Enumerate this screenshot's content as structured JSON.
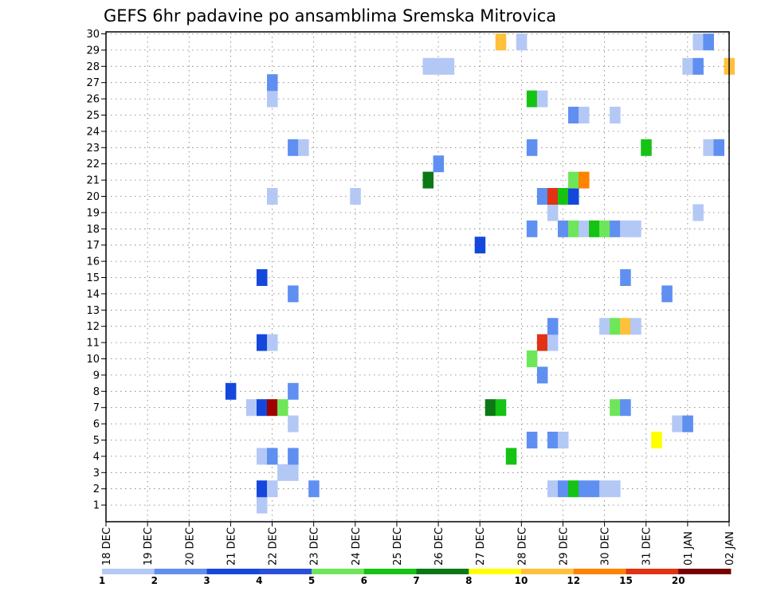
{
  "chart_data": {
    "type": "heatmap",
    "title": "GEFS 6hr padavine po ansamblima Sremska Mitrovica",
    "xlabel": "",
    "ylabel": "",
    "x_ticks": [
      "18 DEC",
      "19 DEC",
      "20 DEC",
      "21 DEC",
      "22 DEC",
      "23 DEC",
      "24 DEC",
      "25 DEC",
      "26 DEC",
      "27 DEC",
      "28 DEC",
      "29 DEC",
      "30 DEC",
      "31 DEC",
      "01 JAN",
      "02 JAN"
    ],
    "y_ticks": [
      "1",
      "2",
      "3",
      "4",
      "5",
      "6",
      "7",
      "8",
      "9",
      "10",
      "11",
      "12",
      "13",
      "14",
      "15",
      "16",
      "17",
      "18",
      "19",
      "20",
      "21",
      "22",
      "23",
      "24",
      "25",
      "26",
      "27",
      "28",
      "29",
      "30"
    ],
    "x_unit": "6-hour step from 18 DEC",
    "xlim": [
      0,
      60
    ],
    "ylim": [
      0,
      30.5
    ],
    "grid": true,
    "legend": {
      "placement": "bottom",
      "levels": [
        "1",
        "2",
        "3",
        "4",
        "5",
        "6",
        "7",
        "8",
        "10",
        "12",
        "15",
        "20"
      ],
      "colors": [
        "#b4c8f5",
        "#5f8ff0",
        "#1448dc",
        "#2a4fdb",
        "#6ee65a",
        "#14c314",
        "#0a7814",
        "#ffff00",
        "#ffc03c",
        "#ff8200",
        "#e13214",
        "#780000"
      ]
    },
    "cells": [
      {
        "x": 15,
        "y": 1,
        "color": "#b4c8f5"
      },
      {
        "x": 15,
        "y": 2,
        "color": "#1448dc"
      },
      {
        "x": 16,
        "y": 2,
        "color": "#b4c8f5"
      },
      {
        "x": 20,
        "y": 2,
        "color": "#5f8ff0"
      },
      {
        "x": 43,
        "y": 2,
        "color": "#b4c8f5"
      },
      {
        "x": 44,
        "y": 2,
        "color": "#5f8ff0"
      },
      {
        "x": 45,
        "y": 2,
        "color": "#14c314"
      },
      {
        "x": 46,
        "y": 2,
        "color": "#5f8ff0"
      },
      {
        "x": 47,
        "y": 2,
        "color": "#5f8ff0"
      },
      {
        "x": 48,
        "y": 2,
        "color": "#b4c8f5"
      },
      {
        "x": 49,
        "y": 2,
        "color": "#b4c8f5"
      },
      {
        "x": 17,
        "y": 3,
        "color": "#b4c8f5"
      },
      {
        "x": 18,
        "y": 3,
        "color": "#b4c8f5"
      },
      {
        "x": 15,
        "y": 4,
        "color": "#b4c8f5"
      },
      {
        "x": 16,
        "y": 4,
        "color": "#5f8ff0"
      },
      {
        "x": 18,
        "y": 4,
        "color": "#5f8ff0"
      },
      {
        "x": 39,
        "y": 4,
        "color": "#14c314"
      },
      {
        "x": 41,
        "y": 5,
        "color": "#5f8ff0"
      },
      {
        "x": 43,
        "y": 5,
        "color": "#5f8ff0"
      },
      {
        "x": 44,
        "y": 5,
        "color": "#b4c8f5"
      },
      {
        "x": 53,
        "y": 5,
        "color": "#ffff00"
      },
      {
        "x": 18,
        "y": 6,
        "color": "#b4c8f5"
      },
      {
        "x": 55,
        "y": 6,
        "color": "#b4c8f5"
      },
      {
        "x": 56,
        "y": 6,
        "color": "#5f8ff0"
      },
      {
        "x": 14,
        "y": 7,
        "color": "#b4c8f5"
      },
      {
        "x": 15,
        "y": 7,
        "color": "#1448dc"
      },
      {
        "x": 16,
        "y": 7,
        "color": "#a00000"
      },
      {
        "x": 17,
        "y": 7,
        "color": "#6ee65a"
      },
      {
        "x": 37,
        "y": 7,
        "color": "#0a7814"
      },
      {
        "x": 38,
        "y": 7,
        "color": "#14c314"
      },
      {
        "x": 49,
        "y": 7,
        "color": "#6ee65a"
      },
      {
        "x": 50,
        "y": 7,
        "color": "#5f8ff0"
      },
      {
        "x": 12,
        "y": 8,
        "color": "#1448dc"
      },
      {
        "x": 18,
        "y": 8,
        "color": "#5f8ff0"
      },
      {
        "x": 42,
        "y": 9,
        "color": "#5f8ff0"
      },
      {
        "x": 41,
        "y": 10,
        "color": "#6ee65a"
      },
      {
        "x": 15,
        "y": 11,
        "color": "#1448dc"
      },
      {
        "x": 16,
        "y": 11,
        "color": "#b4c8f5"
      },
      {
        "x": 42,
        "y": 11,
        "color": "#e13214"
      },
      {
        "x": 43,
        "y": 11,
        "color": "#b4c8f5"
      },
      {
        "x": 43,
        "y": 12,
        "color": "#5f8ff0"
      },
      {
        "x": 48,
        "y": 12,
        "color": "#b4c8f5"
      },
      {
        "x": 49,
        "y": 12,
        "color": "#6ee65a"
      },
      {
        "x": 50,
        "y": 12,
        "color": "#ffc03c"
      },
      {
        "x": 51,
        "y": 12,
        "color": "#b4c8f5"
      },
      {
        "x": 18,
        "y": 14,
        "color": "#5f8ff0"
      },
      {
        "x": 54,
        "y": 14,
        "color": "#5f8ff0"
      },
      {
        "x": 15,
        "y": 15,
        "color": "#1448dc"
      },
      {
        "x": 50,
        "y": 15,
        "color": "#5f8ff0"
      },
      {
        "x": 36,
        "y": 17,
        "color": "#1448dc"
      },
      {
        "x": 41,
        "y": 18,
        "color": "#5f8ff0"
      },
      {
        "x": 44,
        "y": 18,
        "color": "#5f8ff0"
      },
      {
        "x": 45,
        "y": 18,
        "color": "#6ee65a"
      },
      {
        "x": 46,
        "y": 18,
        "color": "#b4c8f5"
      },
      {
        "x": 47,
        "y": 18,
        "color": "#14c314"
      },
      {
        "x": 48,
        "y": 18,
        "color": "#6ee65a"
      },
      {
        "x": 49,
        "y": 18,
        "color": "#5f8ff0"
      },
      {
        "x": 50,
        "y": 18,
        "color": "#b4c8f5"
      },
      {
        "x": 51,
        "y": 18,
        "color": "#b4c8f5"
      },
      {
        "x": 43,
        "y": 19,
        "color": "#b4c8f5"
      },
      {
        "x": 57,
        "y": 19,
        "color": "#b4c8f5"
      },
      {
        "x": 16,
        "y": 20,
        "color": "#b4c8f5"
      },
      {
        "x": 24,
        "y": 20,
        "color": "#b4c8f5"
      },
      {
        "x": 42,
        "y": 20,
        "color": "#5f8ff0"
      },
      {
        "x": 43,
        "y": 20,
        "color": "#e13214"
      },
      {
        "x": 44,
        "y": 20,
        "color": "#14c314"
      },
      {
        "x": 45,
        "y": 20,
        "color": "#1448dc"
      },
      {
        "x": 31,
        "y": 21,
        "color": "#0a7814"
      },
      {
        "x": 45,
        "y": 21,
        "color": "#6ee65a"
      },
      {
        "x": 46,
        "y": 21,
        "color": "#ff8200"
      },
      {
        "x": 32,
        "y": 22,
        "color": "#5f8ff0"
      },
      {
        "x": 18,
        "y": 23,
        "color": "#5f8ff0"
      },
      {
        "x": 19,
        "y": 23,
        "color": "#b4c8f5"
      },
      {
        "x": 41,
        "y": 23,
        "color": "#5f8ff0"
      },
      {
        "x": 52,
        "y": 23,
        "color": "#14c314"
      },
      {
        "x": 58,
        "y": 23,
        "color": "#b4c8f5"
      },
      {
        "x": 59,
        "y": 23,
        "color": "#5f8ff0"
      },
      {
        "x": 45,
        "y": 25,
        "color": "#5f8ff0"
      },
      {
        "x": 46,
        "y": 25,
        "color": "#b4c8f5"
      },
      {
        "x": 49,
        "y": 25,
        "color": "#b4c8f5"
      },
      {
        "x": 16,
        "y": 26,
        "color": "#b4c8f5"
      },
      {
        "x": 41,
        "y": 26,
        "color": "#14c314"
      },
      {
        "x": 42,
        "y": 26,
        "color": "#b4c8f5"
      },
      {
        "x": 16,
        "y": 27,
        "color": "#5f8ff0"
      },
      {
        "x": 31,
        "y": 28,
        "color": "#b4c8f5"
      },
      {
        "x": 32,
        "y": 28,
        "color": "#b4c8f5"
      },
      {
        "x": 33,
        "y": 28,
        "color": "#b4c8f5"
      },
      {
        "x": 56,
        "y": 28,
        "color": "#b4c8f5"
      },
      {
        "x": 57,
        "y": 28,
        "color": "#5f8ff0"
      },
      {
        "x": 60,
        "y": 28,
        "color": "#ffc03c"
      },
      {
        "x": 38,
        "y": 29.5,
        "color": "#ffc03c"
      },
      {
        "x": 40,
        "y": 29.5,
        "color": "#b4c8f5"
      },
      {
        "x": 57,
        "y": 29.5,
        "color": "#b4c8f5"
      },
      {
        "x": 58,
        "y": 29.5,
        "color": "#5f8ff0"
      }
    ]
  }
}
